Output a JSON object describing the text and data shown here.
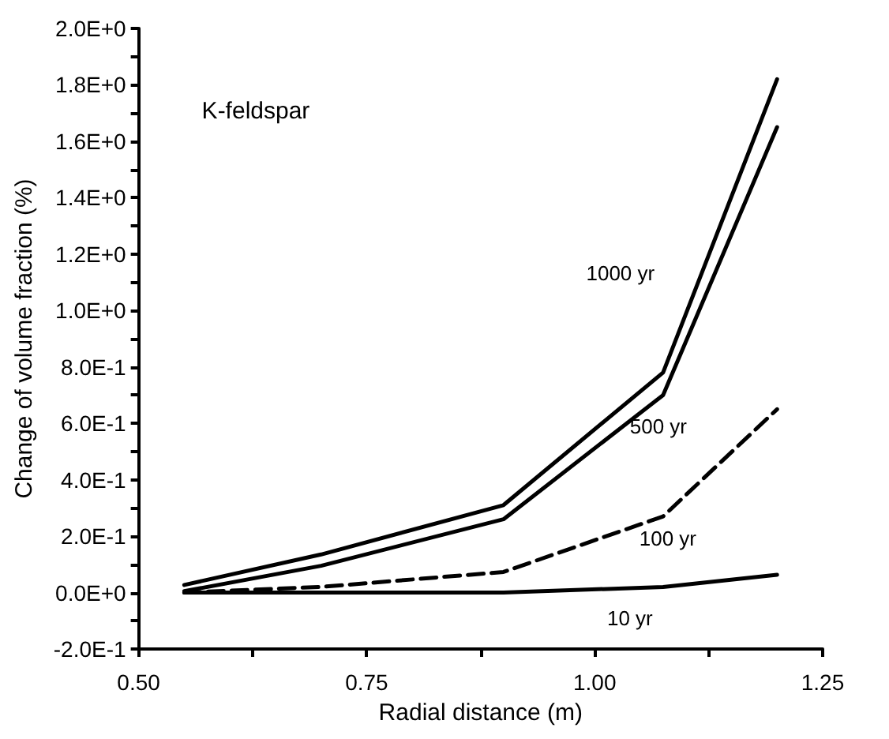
{
  "chart_data": {
    "type": "line",
    "xlabel": "Radial distance (m)",
    "ylabel": "Change of volume fraction (%)",
    "x": [
      0.55,
      0.7,
      0.9,
      1.075,
      1.2
    ],
    "series": [
      {
        "name": "1000 yr",
        "color": "#000000",
        "line_style": "solid",
        "values": [
          0.027,
          0.135,
          0.31,
          0.78,
          1.82
        ]
      },
      {
        "name": "500 yr",
        "color": "#000000",
        "line_style": "solid",
        "values": [
          0.005,
          0.095,
          0.26,
          0.7,
          1.65
        ]
      },
      {
        "name": "100 yr",
        "color": "#000000",
        "line_style": "dashed",
        "values": [
          0,
          0.02,
          0.073,
          0.27,
          0.65
        ]
      },
      {
        "name": "10 yr",
        "color": "#000000",
        "line_style": "solid",
        "values": [
          0,
          0,
          0,
          0.02,
          0.063
        ]
      }
    ],
    "xlim": [
      0.5,
      1.25
    ],
    "xticks": [
      {
        "value": 0.5,
        "label": "0.50"
      },
      {
        "value": 0.625,
        "label": null
      },
      {
        "value": 0.75,
        "label": "0.75"
      },
      {
        "value": 0.875,
        "label": null
      },
      {
        "value": 1.0,
        "label": "1.00"
      },
      {
        "value": 1.125,
        "label": null
      },
      {
        "value": 1.25,
        "label": "1.25"
      }
    ],
    "ylim": [
      -0.2,
      2.0
    ],
    "yticks": [
      {
        "value": -0.2,
        "label": "-2.0E-1"
      },
      {
        "value": -0.1,
        "label": null
      },
      {
        "value": 0,
        "label": "0.0E+0"
      },
      {
        "value": 0.1,
        "label": null
      },
      {
        "value": 0.2,
        "label": "2.0E-1"
      },
      {
        "value": 0.3,
        "label": null
      },
      {
        "value": 0.4,
        "label": "4.0E-1"
      },
      {
        "value": 0.5,
        "label": null
      },
      {
        "value": 0.6,
        "label": "6.0E-1"
      },
      {
        "value": 0.7,
        "label": null
      },
      {
        "value": 0.8,
        "label": "8.0E-1"
      },
      {
        "value": 0.9,
        "label": null
      },
      {
        "value": 1.0,
        "label": "1.0E+0"
      },
      {
        "value": 1.1,
        "label": null
      },
      {
        "value": 1.2,
        "label": "1.2E+0"
      },
      {
        "value": 1.3,
        "label": null
      },
      {
        "value": 1.4,
        "label": "1.4E+0"
      },
      {
        "value": 1.5,
        "label": null
      },
      {
        "value": 1.6,
        "label": "1.6E+0"
      },
      {
        "value": 1.7,
        "label": null
      },
      {
        "value": 1.8,
        "label": "1.8E+0"
      },
      {
        "value": 1.9,
        "label": null
      },
      {
        "value": 2.0,
        "label": "2.0E+0"
      }
    ],
    "grid": false,
    "marker": "none",
    "annotations": [
      "K-feldspar"
    ]
  }
}
